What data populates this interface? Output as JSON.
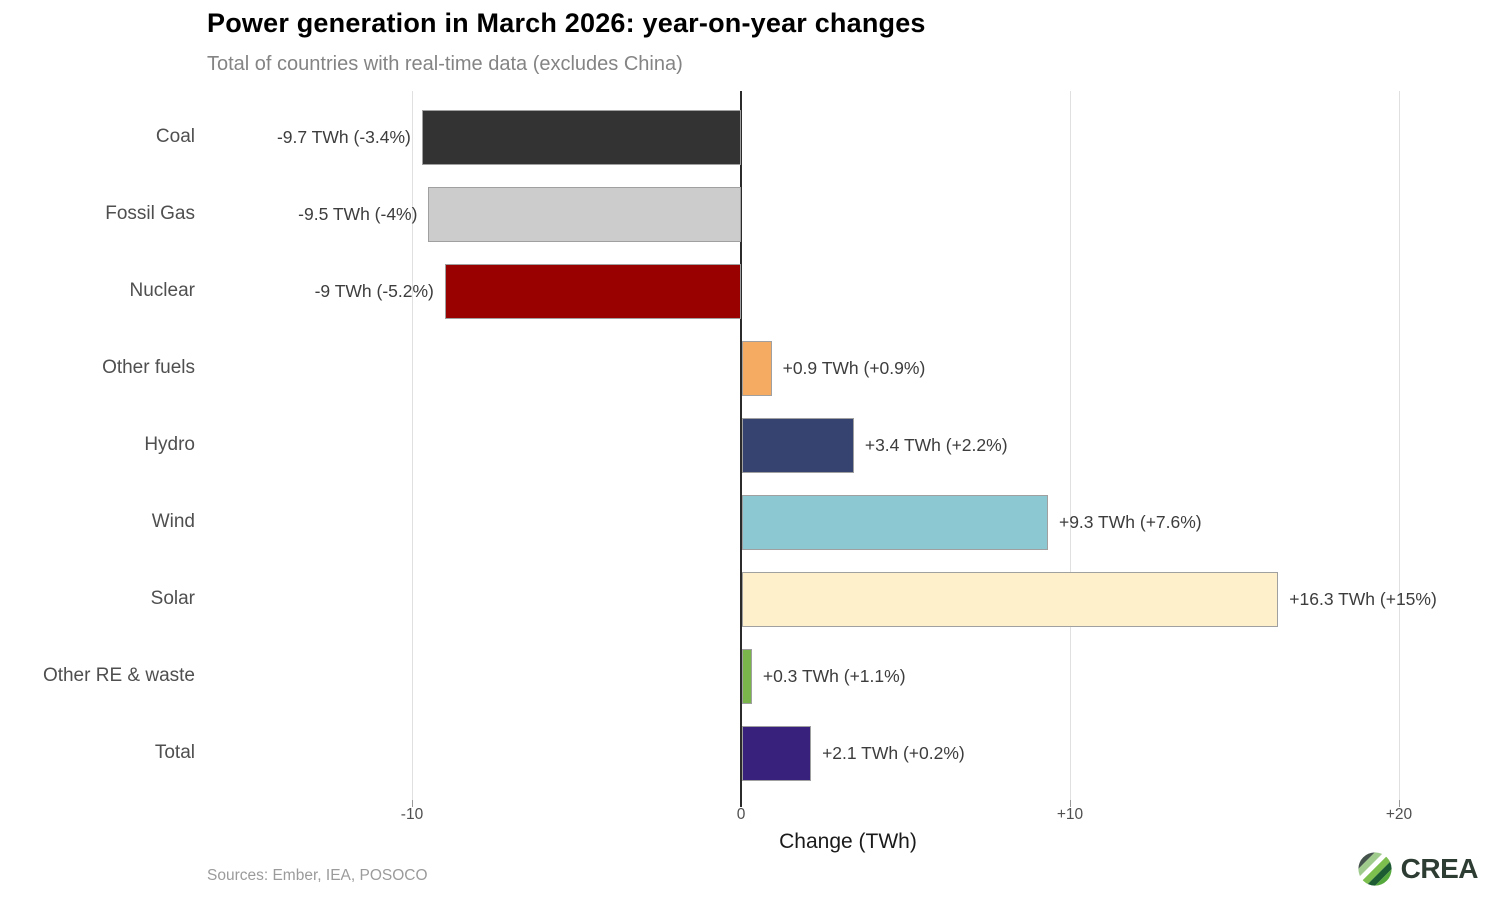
{
  "header": {
    "title": "Power generation in March 2026: year-on-year changes",
    "subtitle": "Total of countries with real-time data (excludes China)"
  },
  "chart_data": {
    "type": "bar",
    "orientation": "horizontal",
    "title": "Power generation in March 2026: year-on-year changes",
    "subtitle": "Total of countries with real-time data (excludes China)",
    "xlabel": "Change (TWh)",
    "xlim": [
      -16.5,
      23
    ],
    "grid": "vertical-gridlines-at-ticks",
    "legend": "none",
    "categories": [
      "Coal",
      "Fossil Gas",
      "Nuclear",
      "Other fuels",
      "Hydro",
      "Wind",
      "Solar",
      "Other RE & waste",
      "Total"
    ],
    "values": [
      -9.7,
      -9.5,
      -9,
      0.9,
      3.4,
      9.3,
      16.3,
      0.3,
      2.1
    ],
    "percent_changes": [
      "-3.4%",
      "-4%",
      "-5.2%",
      "+0.9%",
      "+2.2%",
      "+7.6%",
      "+15%",
      "+1.1%",
      "+0.2%"
    ],
    "bar_labels": [
      "-9.7 TWh (-3.4%)",
      "-9.5 TWh (-4%)",
      "-9 TWh (-5.2%)",
      "+0.9 TWh (+0.9%)",
      "+3.4 TWh (+2.2%)",
      "+9.3 TWh (+7.6%)",
      "+16.3 TWh (+15%)",
      "+0.3 TWh (+1.1%)",
      "+2.1 TWh (+0.2%)"
    ],
    "colors": [
      "#333333",
      "#cccccc",
      "#990000",
      "#f5ab61",
      "#364270",
      "#8cc8d2",
      "#fdf0ca",
      "#79b54a",
      "#38217d"
    ],
    "x_ticks": [
      {
        "value": -10,
        "label": "-10"
      },
      {
        "value": 0,
        "label": "0"
      },
      {
        "value": 10,
        "label": "+10"
      },
      {
        "value": 20,
        "label": "+20"
      }
    ]
  },
  "footer": {
    "sources": "Sources: Ember, IEA, POSOCO",
    "logo_text": "CREA",
    "logo_icon_colors": [
      "#44534b",
      "#9fcb8c",
      "#7cbf4f",
      "#1d5c33",
      "#55a83c"
    ]
  }
}
